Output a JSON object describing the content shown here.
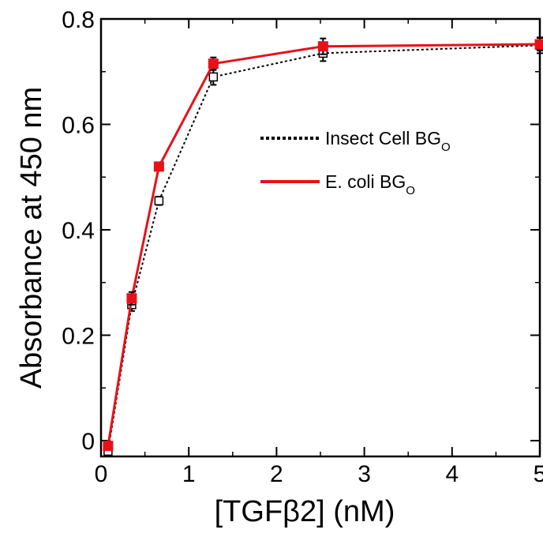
{
  "chart_data": {
    "type": "line",
    "xlabel": "[TGFβ2] (nM)",
    "ylabel": "Absorbance at 450 nm",
    "xlim": [
      0,
      5
    ],
    "ylim": [
      -0.03,
      0.8
    ],
    "x_ticks": [
      "0",
      "1",
      "2",
      "3",
      "4",
      "5"
    ],
    "y_ticks": [
      "0",
      "0.2",
      "0.4",
      "0.6",
      "0.8"
    ],
    "grid": false,
    "legend_position": "center-right",
    "series": [
      {
        "name": "Insect Cell BG",
        "name_subscript": "O",
        "color": "#000000",
        "line_style": "dotted",
        "marker": "open-square",
        "x": [
          0.08,
          0.35,
          0.66,
          1.28,
          2.53,
          5.0
        ],
        "y": [
          -0.02,
          0.258,
          0.455,
          0.69,
          0.735,
          0.75
        ],
        "err": [
          0.005,
          0.012,
          0.008,
          0.015,
          0.015,
          0.015
        ]
      },
      {
        "name": "E. coli BG",
        "name_subscript": "O",
        "color": "#e8111a",
        "line_style": "solid",
        "marker": "filled-square",
        "x": [
          0.08,
          0.35,
          0.66,
          1.28,
          2.53,
          5.0
        ],
        "y": [
          -0.01,
          0.27,
          0.52,
          0.715,
          0.748,
          0.752
        ],
        "err": [
          0.005,
          0.012,
          0.008,
          0.012,
          0.015,
          0.012
        ]
      }
    ]
  }
}
